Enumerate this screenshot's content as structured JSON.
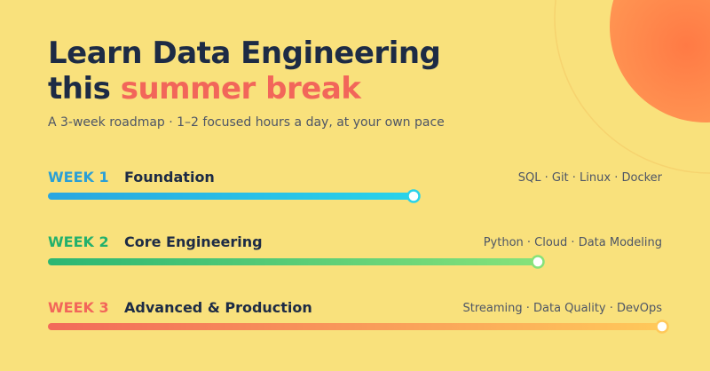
{
  "header": {
    "title_line1": "Learn Data Engineering",
    "title_line2_plain": "this",
    "title_line2_accent": "summer break",
    "subtitle": "A 3-week roadmap · 1–2 focused hours a day, at your own pace"
  },
  "weeks": [
    {
      "label": "WEEK 1",
      "title": "Foundation",
      "topics": "SQL · Git · Linux · Docker"
    },
    {
      "label": "WEEK 2",
      "title": "Core Engineering",
      "topics": "Python · Cloud · Data Modeling"
    },
    {
      "label": "WEEK 3",
      "title": "Advanced & Production",
      "topics": "Streaming · Data Quality · DevOps"
    }
  ]
}
